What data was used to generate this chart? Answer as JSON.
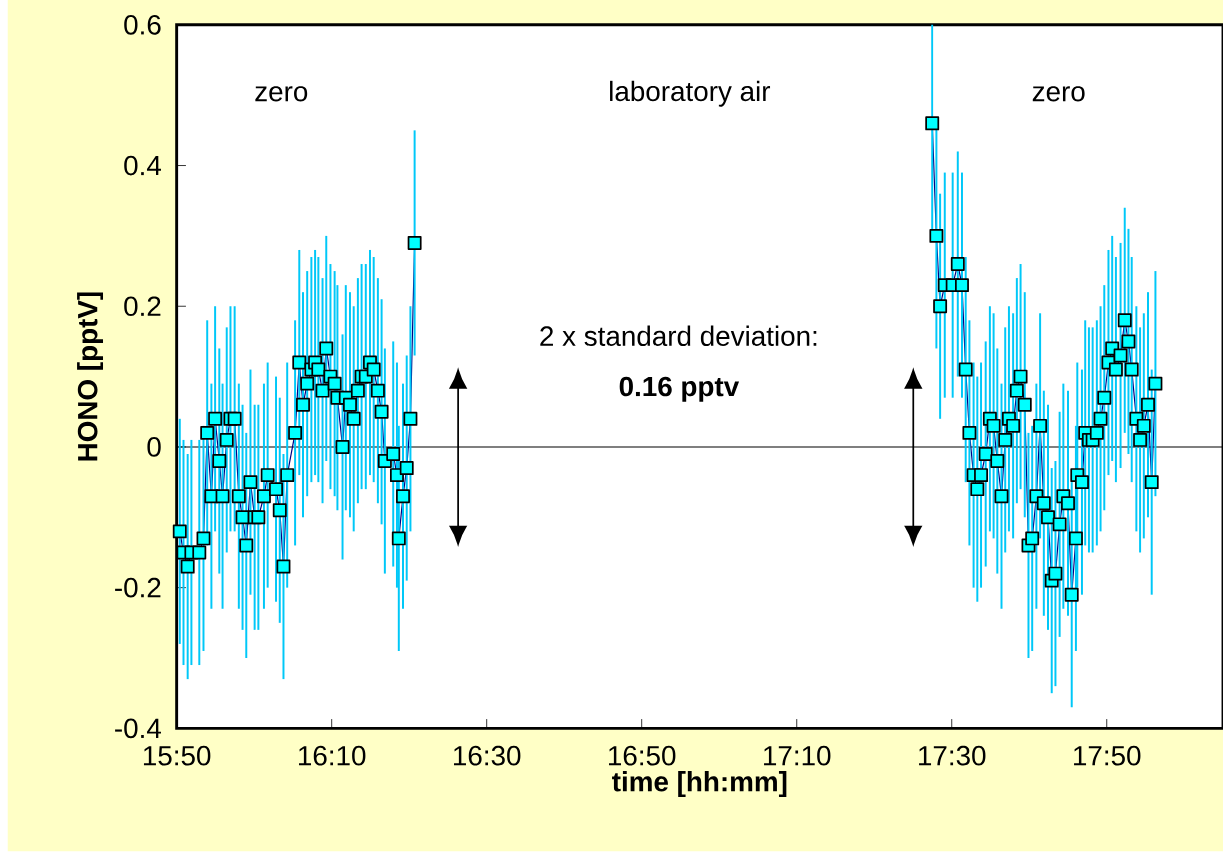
{
  "chart_data": {
    "type": "line",
    "xlabel": "time [hh:mm]",
    "ylabel": "HONO [pptV]",
    "annotations": [
      "zero",
      "laboratory air",
      "zero",
      "2 x standard deviation:",
      "0.16 pptv"
    ],
    "x": [
      15.84,
      15.848,
      15.857,
      15.865,
      15.882,
      15.891,
      15.899,
      15.908,
      15.916,
      15.925,
      15.932,
      15.941,
      15.949,
      15.958,
      15.967,
      15.975,
      15.983,
      15.992,
      16.001,
      16.009,
      16.021,
      16.029,
      16.047,
      16.055,
      16.063,
      16.071,
      16.088,
      16.097,
      16.105,
      16.114,
      16.123,
      16.131,
      16.138,
      16.147,
      16.155,
      16.164,
      16.173,
      16.179,
      16.19,
      16.197,
      16.206,
      16.214,
      16.223,
      16.231,
      16.24,
      16.249,
      16.257,
      16.266,
      16.274,
      16.281,
      16.299,
      16.307,
      16.311,
      16.32,
      16.328,
      16.336,
      16.345,
      16.9,
      17.458,
      17.467,
      17.475,
      17.485,
      17.502,
      17.513,
      17.522,
      17.53,
      17.538,
      17.547,
      17.555,
      17.563,
      17.573,
      17.582,
      17.59,
      17.598,
      17.607,
      17.615,
      17.623,
      17.632,
      17.64,
      17.648,
      17.657,
      17.665,
      17.673,
      17.682,
      17.69,
      17.698,
      17.707,
      17.715,
      17.723,
      17.732,
      17.74,
      17.75,
      17.758,
      17.767,
      17.77,
      17.78,
      17.787,
      17.795,
      17.803,
      17.812,
      17.82,
      17.828,
      17.837,
      17.845,
      17.853,
      17.863,
      17.872,
      17.88,
      17.887,
      17.897,
      17.905,
      17.913,
      17.922,
      17.93,
      17.938
    ],
    "series": [
      {
        "color": "#00ffff",
        "values": [
          -0.12,
          -0.15,
          -0.17,
          -0.15,
          -0.15,
          -0.13,
          0.02,
          -0.07,
          0.04,
          -0.02,
          -0.07,
          0.01,
          0.04,
          0.04,
          -0.07,
          -0.1,
          -0.14,
          -0.05,
          -0.1,
          -0.1,
          -0.07,
          -0.04,
          -0.06,
          -0.09,
          -0.17,
          -0.04,
          0.02,
          0.12,
          0.06,
          0.09,
          0.11,
          0.12,
          0.11,
          0.08,
          0.14,
          0.1,
          0.09,
          0.07,
          0.0,
          0.07,
          0.06,
          0.04,
          0.08,
          0.1,
          0.1,
          0.12,
          0.11,
          0.08,
          0.05,
          -0.02,
          -0.01,
          -0.04,
          -0.13,
          -0.07,
          -0.03,
          0.04,
          0.29,
          null,
          0.46,
          0.3,
          0.2,
          0.23,
          0.23,
          0.26,
          0.23,
          0.11,
          0.02,
          -0.04,
          -0.06,
          -0.04,
          -0.01,
          0.04,
          0.03,
          -0.02,
          -0.07,
          0.01,
          0.04,
          0.03,
          0.08,
          0.1,
          0.06,
          -0.14,
          -0.13,
          -0.07,
          0.03,
          -0.08,
          -0.1,
          -0.19,
          -0.18,
          -0.11,
          -0.07,
          -0.08,
          -0.21,
          -0.13,
          -0.04,
          -0.05,
          0.02,
          0.01,
          0.01,
          0.02,
          0.04,
          0.07,
          0.12,
          0.14,
          0.11,
          0.13,
          0.18,
          0.15,
          0.11,
          0.04,
          0.01,
          0.03,
          0.06,
          -0.05,
          0.09
        ],
        "errors": [
          0.16,
          0.16,
          0.16,
          0.16,
          0.16,
          0.16,
          0.16,
          0.16,
          0.16,
          0.16,
          0.16,
          0.16,
          0.16,
          0.16,
          0.16,
          0.16,
          0.16,
          0.16,
          0.16,
          0.16,
          0.16,
          0.16,
          0.16,
          0.16,
          0.16,
          0.16,
          0.16,
          0.16,
          0.16,
          0.16,
          0.16,
          0.16,
          0.16,
          0.16,
          0.16,
          0.16,
          0.16,
          0.16,
          0.16,
          0.16,
          0.16,
          0.16,
          0.16,
          0.16,
          0.16,
          0.16,
          0.16,
          0.16,
          0.16,
          0.16,
          0.16,
          0.16,
          0.16,
          0.16,
          0.16,
          0.16,
          0.16,
          null,
          0.16,
          0.16,
          0.16,
          0.16,
          0.16,
          0.16,
          0.16,
          0.16,
          0.16,
          0.16,
          0.16,
          0.16,
          0.16,
          0.16,
          0.16,
          0.16,
          0.16,
          0.16,
          0.16,
          0.16,
          0.16,
          0.16,
          0.16,
          0.16,
          0.16,
          0.16,
          0.16,
          0.16,
          0.16,
          0.16,
          0.16,
          0.16,
          0.16,
          0.16,
          0.16,
          0.16,
          0.16,
          0.16,
          0.16,
          0.16,
          0.16,
          0.16,
          0.16,
          0.16,
          0.16,
          0.16,
          0.16,
          0.16,
          0.16,
          0.16,
          0.16,
          0.16,
          0.16,
          0.16,
          0.16,
          0.16,
          0.16
        ]
      }
    ],
    "xlim": [
      15.8333,
      18.0833
    ],
    "ylim": [
      -0.4,
      0.6
    ],
    "xticks": [
      {
        "value": 15.8333,
        "label": "15:50"
      },
      {
        "value": 16.1667,
        "label": "16:10"
      },
      {
        "value": 16.5,
        "label": "16:30"
      },
      {
        "value": 16.8333,
        "label": "16:50"
      },
      {
        "value": 17.1667,
        "label": "17:10"
      },
      {
        "value": 17.5,
        "label": "17:30"
      },
      {
        "value": 17.8333,
        "label": "17:50"
      }
    ],
    "yticks": [
      -0.4,
      -0.2,
      0,
      0.2,
      0.4,
      0.6
    ],
    "ref_lines": [
      {
        "axis": "y",
        "value": 0,
        "color": "#000000"
      }
    ],
    "marker": "square",
    "line_style": "solid"
  }
}
